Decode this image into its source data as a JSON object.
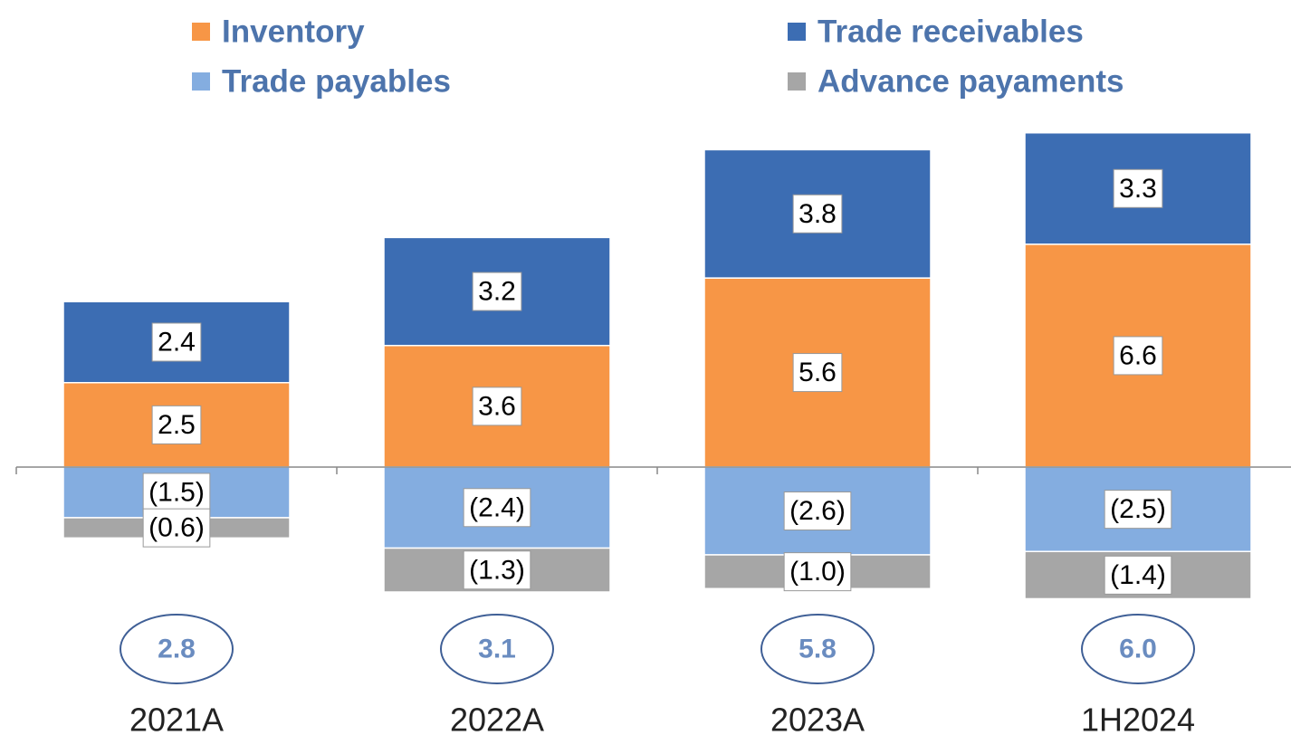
{
  "chart_data": {
    "type": "bar",
    "stacked": true,
    "categories": [
      "2021A",
      "2022A",
      "2023A",
      "1H2024"
    ],
    "series": [
      {
        "name": "Inventory",
        "color": "#f79646",
        "values": [
          2.5,
          3.6,
          5.6,
          6.6
        ],
        "value_labels": [
          "2.5",
          "3.6",
          "5.6",
          "6.6"
        ]
      },
      {
        "name": "Trade receivables",
        "color": "#3c6db3",
        "values": [
          2.4,
          3.2,
          3.8,
          3.3
        ],
        "value_labels": [
          "2.4",
          "3.2",
          "3.8",
          "3.3"
        ]
      },
      {
        "name": "Trade payables",
        "color": "#84ade0",
        "values": [
          -1.5,
          -2.4,
          -2.6,
          -2.5
        ],
        "value_labels": [
          "(1.5)",
          "(2.4)",
          "(2.6)",
          "(2.5)"
        ]
      },
      {
        "name": "Advance payaments",
        "color": "#a6a6a6",
        "values": [
          -0.6,
          -1.3,
          -1.0,
          -1.4
        ],
        "value_labels": [
          "(0.6)",
          "(1.3)",
          "(1.0)",
          "(1.4)"
        ]
      }
    ],
    "totals": {
      "values": [
        2.8,
        3.1,
        5.8,
        6.0
      ],
      "value_labels": [
        "2.8",
        "3.1",
        "5.8",
        "6.0"
      ]
    }
  }
}
